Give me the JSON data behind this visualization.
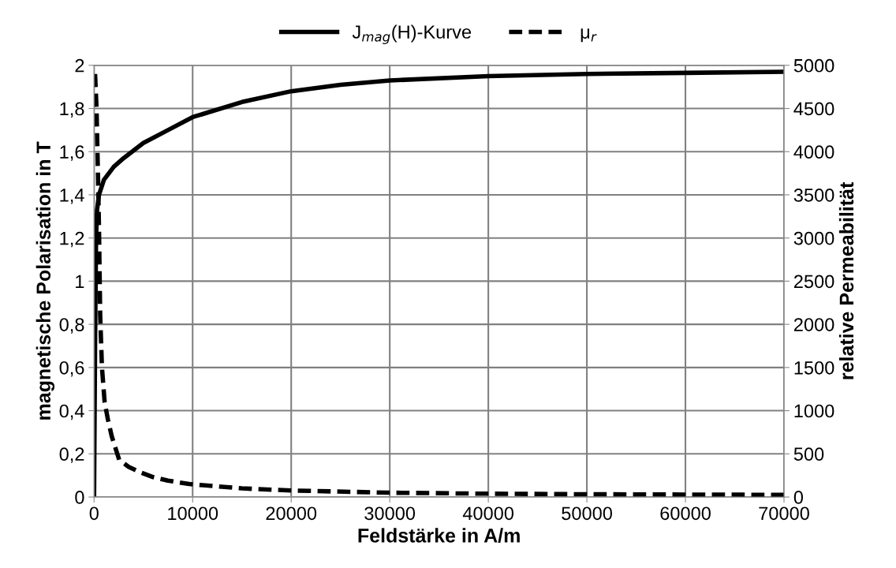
{
  "chart_data": {
    "type": "line",
    "xlabel": "Feldstärke in A/m",
    "ylabel": "magnetische Polarisation in T",
    "y2label": "relative Permeabilität",
    "xlim": [
      0,
      70000
    ],
    "xticks": [
      0,
      10000,
      20000,
      30000,
      40000,
      50000,
      60000,
      70000
    ],
    "ylim": [
      0,
      2
    ],
    "yticks": [
      0,
      {
        "value": 0.2,
        "label": "0,2"
      },
      {
        "value": 0.4,
        "label": "0,4"
      },
      {
        "value": 0.6,
        "label": "0,6"
      },
      {
        "value": 0.8,
        "label": "0,8"
      },
      1,
      {
        "value": 1.2,
        "label": "1,2"
      },
      {
        "value": 1.4,
        "label": "1,4"
      },
      {
        "value": 1.6,
        "label": "1,6"
      },
      {
        "value": 1.8,
        "label": "1,8"
      },
      2
    ],
    "y2lim": [
      0,
      5000
    ],
    "y2ticks": [
      0,
      500,
      1000,
      1500,
      2000,
      2500,
      3000,
      3500,
      4000,
      4500,
      5000
    ],
    "grid": true,
    "legend": "top",
    "marker": "none",
    "series": [
      {
        "name": "J$_{mag}$(H)-Kurve",
        "color": "#000000",
        "line_style": "solid",
        "x": [
          0,
          100,
          200,
          300,
          500,
          1000,
          2000,
          3000,
          5000,
          7500,
          10000,
          15000,
          20000,
          25000,
          30000,
          40000,
          50000,
          60000,
          70000
        ],
        "values": [
          0,
          0.7,
          1.2,
          1.33,
          1.4,
          1.47,
          1.53,
          1.57,
          1.64,
          1.7,
          1.76,
          1.83,
          1.88,
          1.91,
          1.93,
          1.95,
          1.96,
          1.965,
          1.97
        ]
      },
      {
        "name": "μ$_{r}$",
        "color": "#000000",
        "line_style": "dashed",
        "axis": "y2",
        "x": [
          100,
          250,
          400,
          500,
          620,
          800,
          1070,
          1400,
          1800,
          2550,
          3500,
          4600,
          6000,
          7500,
          9650,
          15000,
          20000,
          30000,
          40000,
          50000,
          60000,
          70000
        ],
        "values": [
          4900,
          4500,
          3700,
          3100,
          2100,
          1500,
          1100,
          900,
          700,
          430,
          350,
          290,
          230,
          190,
          150,
          100,
          75,
          50,
          38,
          32,
          28,
          25
        ]
      }
    ]
  }
}
